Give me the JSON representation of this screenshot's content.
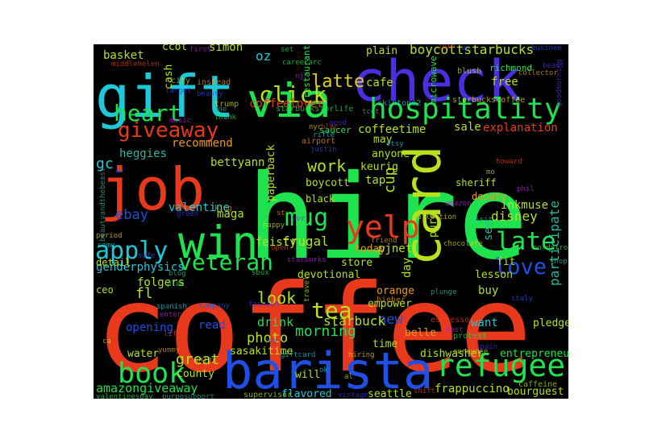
{
  "palette": {
    "red": "#e8391d",
    "green": "#1fe34e",
    "blue": "#1f4fe3",
    "purple": "#4a2fe0",
    "cyan": "#1cc9d9",
    "lime": "#b8e01c",
    "teal": "#2bb6a0",
    "orange": "#e89a1c",
    "yellow": "#e0d21c",
    "magenta": "#b81ce0"
  },
  "words": [
    "coffee",
    "hire",
    "check",
    "gift",
    "job",
    "barista",
    "via",
    "win",
    "card",
    "hospitality",
    "refugee",
    "yelp",
    "mug",
    "book",
    "apply",
    "veteran",
    "heart",
    "giveaway",
    "click",
    "love",
    "late",
    "tea",
    "latte",
    "amazongiveaway",
    "great",
    "look",
    "morning",
    "participate",
    "boycottstarbucks",
    "cup",
    "work",
    "oz",
    "ebay",
    "disney",
    "frappuccino",
    "sale",
    "new",
    "photo",
    "starbuck",
    "drink",
    "explanation",
    "coffeelover",
    "coffeetime",
    "heggies",
    "gc",
    "valentine",
    "bettyann",
    "recommend",
    "genderphysics",
    "inkmuse",
    "see",
    "free",
    "cafe",
    "plain",
    "simon",
    "basket",
    "ccot",
    "cash",
    "feisty",
    "frugal",
    "maga",
    "paperback",
    "boycott",
    "keurig",
    "tap",
    "may",
    "anyone",
    "devotional",
    "store",
    "today",
    "pjnet",
    "fit",
    "buy",
    "want",
    "pledge",
    "entrepreneur",
    "bourguest",
    "seattle",
    "flavored",
    "will",
    "sasakitime",
    "dishwasher",
    "time",
    "belle",
    "county",
    "water",
    "opening",
    "read",
    "fl",
    "folgers",
    "ceo",
    "detail",
    "orange",
    "empower",
    "lesson",
    "day",
    "pure",
    "sheriff",
    "deputy",
    "black",
    "starbucksforlife",
    "saucer",
    "microwave",
    "starbuckscoffee",
    "richmond",
    "businee",
    "goodmorning",
    "blush",
    "join",
    "first",
    "careerarc",
    "restaurantlife",
    "instead",
    "trump",
    "skintone2",
    "beauty",
    "target",
    "city",
    "middlehelen",
    "music",
    "thank",
    "one",
    "airport",
    "nyc",
    "rifle",
    "justin",
    "good",
    "caffeine",
    "howard",
    "phil",
    "nordstrom",
    "shop",
    "collector",
    "chocolate",
    "visit",
    "italy",
    "spain",
    "announce",
    "espresso",
    "best",
    "protest",
    "plunge",
    "bieber",
    "hiring",
    "giftcard",
    "joy",
    "vintage",
    "supervisor",
    "shift",
    "amazon",
    "valentinesday",
    "purposupport",
    "yummy",
    "enjoy",
    "spanish",
    "company",
    "fashion",
    "travel",
    "life",
    "enter",
    "plan",
    "blog",
    "king",
    "period",
    "come",
    "safe",
    "green",
    "happy",
    "open",
    "starburks",
    "sbux",
    "beautyandthebeast",
    "friend",
    "collection",
    "etsy",
    "mr",
    "yvr",
    "al",
    "blac",
    "nj",
    "set",
    "tcot",
    "st",
    "ca",
    "ok",
    "un",
    "beast",
    "mo"
  ]
}
